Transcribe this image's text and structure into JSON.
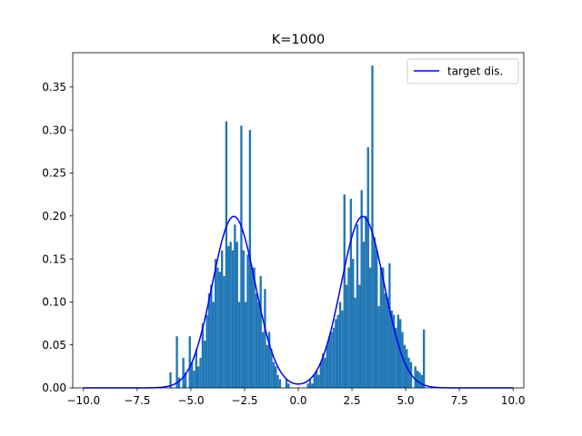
{
  "chart_data": {
    "type": "bar",
    "title": "K=1000",
    "xlabel": "",
    "ylabel": "",
    "xlim": [
      -10.5,
      10.5
    ],
    "ylim": [
      0,
      0.39
    ],
    "xticks": [
      -10.0,
      -7.5,
      -5.0,
      -2.5,
      0.0,
      2.5,
      5.0,
      7.5,
      10.0
    ],
    "xtick_labels": [
      "−10.0",
      "−7.5",
      "−5.0",
      "−2.5",
      "0.0",
      "2.5",
      "5.0",
      "7.5",
      "10.0"
    ],
    "yticks": [
      0.0,
      0.05,
      0.1,
      0.15,
      0.2,
      0.25,
      0.3,
      0.35
    ],
    "ytick_labels": [
      "0.00",
      "0.05",
      "0.10",
      "0.15",
      "0.20",
      "0.25",
      "0.30",
      "0.35"
    ],
    "grid": false,
    "legend_position": "top-right",
    "bar_color": "#1f77b4",
    "line_color": "#0000ff",
    "bin_width": 0.1,
    "series": [
      {
        "kind": "histogram",
        "bins": [
          [
            -6.0,
            0.018
          ],
          [
            -5.9,
            0.0
          ],
          [
            -5.8,
            0.0
          ],
          [
            -5.7,
            0.06
          ],
          [
            -5.6,
            0.012
          ],
          [
            -5.5,
            0.0
          ],
          [
            -5.4,
            0.035
          ],
          [
            -5.3,
            0.018
          ],
          [
            -5.2,
            0.0
          ],
          [
            -5.1,
            0.06
          ],
          [
            -5.0,
            0.03
          ],
          [
            -4.9,
            0.02
          ],
          [
            -4.8,
            0.045
          ],
          [
            -4.7,
            0.025
          ],
          [
            -4.6,
            0.035
          ],
          [
            -4.5,
            0.075
          ],
          [
            -4.4,
            0.055
          ],
          [
            -4.3,
            0.085
          ],
          [
            -4.2,
            0.11
          ],
          [
            -4.1,
            0.12
          ],
          [
            -4.0,
            0.1
          ],
          [
            -3.9,
            0.15
          ],
          [
            -3.8,
            0.14
          ],
          [
            -3.7,
            0.135
          ],
          [
            -3.6,
            0.16
          ],
          [
            -3.5,
            0.13
          ],
          [
            -3.4,
            0.31
          ],
          [
            -3.3,
            0.165
          ],
          [
            -3.2,
            0.17
          ],
          [
            -3.1,
            0.16
          ],
          [
            -3.0,
            0.19
          ],
          [
            -2.9,
            0.17
          ],
          [
            -2.8,
            0.1
          ],
          [
            -2.7,
            0.305
          ],
          [
            -2.6,
            0.16
          ],
          [
            -2.5,
            0.1
          ],
          [
            -2.4,
            0.155
          ],
          [
            -2.3,
            0.3
          ],
          [
            -2.2,
            0.14
          ],
          [
            -2.1,
            0.14
          ],
          [
            -2.0,
            0.11
          ],
          [
            -1.9,
            0.1
          ],
          [
            -1.8,
            0.13
          ],
          [
            -1.7,
            0.065
          ],
          [
            -1.6,
            0.115
          ],
          [
            -1.5,
            0.05
          ],
          [
            -1.4,
            0.065
          ],
          [
            -1.3,
            0.045
          ],
          [
            -1.2,
            0.03
          ],
          [
            -1.1,
            0.025
          ],
          [
            -1.0,
            0.015
          ],
          [
            -0.9,
            0.01
          ],
          [
            -0.8,
            0.0
          ],
          [
            -0.7,
            0.0
          ],
          [
            -0.6,
            0.01
          ],
          [
            -0.5,
            0.005
          ],
          [
            -0.4,
            0.0
          ],
          [
            -0.3,
            0.0
          ],
          [
            -0.2,
            0.0
          ],
          [
            -0.1,
            0.0
          ],
          [
            0.0,
            0.0
          ],
          [
            0.1,
            0.0
          ],
          [
            0.2,
            0.0
          ],
          [
            0.3,
            0.0
          ],
          [
            0.4,
            0.005
          ],
          [
            0.5,
            0.01
          ],
          [
            0.6,
            0.005
          ],
          [
            0.7,
            0.015
          ],
          [
            0.8,
            0.02
          ],
          [
            0.9,
            0.015
          ],
          [
            1.0,
            0.03
          ],
          [
            1.1,
            0.04
          ],
          [
            1.2,
            0.035
          ],
          [
            1.3,
            0.05
          ],
          [
            1.4,
            0.06
          ],
          [
            1.5,
            0.065
          ],
          [
            1.6,
            0.07
          ],
          [
            1.7,
            0.08
          ],
          [
            1.8,
            0.085
          ],
          [
            1.9,
            0.1
          ],
          [
            2.0,
            0.09
          ],
          [
            2.1,
            0.225
          ],
          [
            2.2,
            0.12
          ],
          [
            2.3,
            0.14
          ],
          [
            2.4,
            0.22
          ],
          [
            2.5,
            0.15
          ],
          [
            2.6,
            0.105
          ],
          [
            2.7,
            0.19
          ],
          [
            2.8,
            0.12
          ],
          [
            2.9,
            0.23
          ],
          [
            3.0,
            0.17
          ],
          [
            3.1,
            0.2
          ],
          [
            3.2,
            0.28
          ],
          [
            3.3,
            0.14
          ],
          [
            3.4,
            0.375
          ],
          [
            3.5,
            0.175
          ],
          [
            3.6,
            0.16
          ],
          [
            3.7,
            0.095
          ],
          [
            3.8,
            0.14
          ],
          [
            3.9,
            0.14
          ],
          [
            4.0,
            0.11
          ],
          [
            4.1,
            0.105
          ],
          [
            4.2,
            0.145
          ],
          [
            4.3,
            0.09
          ],
          [
            4.4,
            0.085
          ],
          [
            4.5,
            0.07
          ],
          [
            4.6,
            0.085
          ],
          [
            4.7,
            0.08
          ],
          [
            4.8,
            0.065
          ],
          [
            4.9,
            0.05
          ],
          [
            5.0,
            0.045
          ],
          [
            5.1,
            0.035
          ],
          [
            5.2,
            0.03
          ],
          [
            5.3,
            0.0
          ],
          [
            5.4,
            0.025
          ],
          [
            5.5,
            0.02
          ],
          [
            5.6,
            0.018
          ],
          [
            5.7,
            0.015
          ],
          [
            5.8,
            0.068
          ],
          [
            5.9,
            0.0
          ]
        ]
      },
      {
        "kind": "line",
        "name": "target dis.",
        "formula": "0.5*N(-3,1) + 0.5*N(3,1)",
        "x_range": [
          -10,
          10
        ]
      }
    ]
  }
}
